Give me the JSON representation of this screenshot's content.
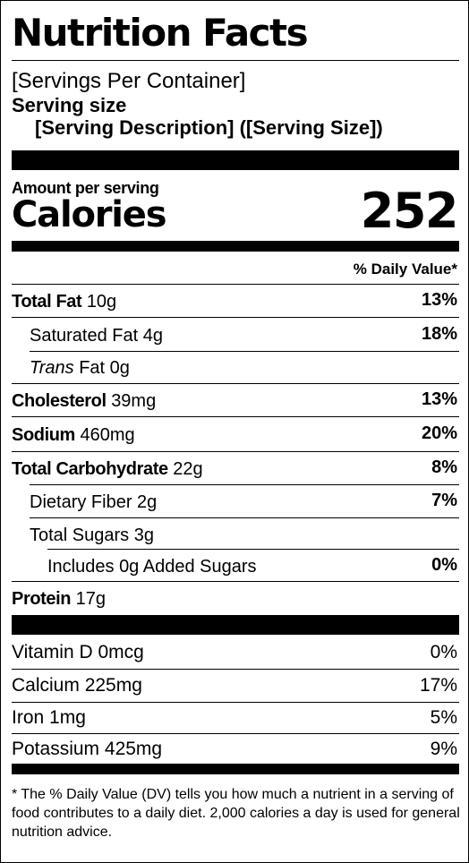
{
  "title": "Nutrition Facts",
  "servings_per_container": "[Servings Per Container]",
  "serving_size_label": "Serving size",
  "serving_description": "[Serving Description] ([Serving Size])",
  "amount_per_serving": "Amount per serving",
  "calories_label": "Calories",
  "calories_value": "252",
  "daily_value_header": "% Daily Value*",
  "nutrients": [
    {
      "name": "Total Fat",
      "amount": "10g",
      "dv": "13%"
    },
    {
      "name": "Saturated Fat",
      "amount": "4g",
      "dv": "18%"
    },
    {
      "name": "Trans",
      "name_suffix": "Fat",
      "amount": "0g",
      "dv": ""
    },
    {
      "name": "Cholesterol",
      "amount": "39mg",
      "dv": "13%"
    },
    {
      "name": "Sodium",
      "amount": "460mg",
      "dv": "20%"
    },
    {
      "name": "Total Carbohydrate",
      "amount": "22g",
      "dv": "8%"
    },
    {
      "name": "Dietary Fiber",
      "amount": "2g",
      "dv": "7%"
    },
    {
      "name": "Total Sugars",
      "amount": "3g",
      "dv": ""
    },
    {
      "prefix": "Includes",
      "amount": "0g",
      "name": "Added Sugars",
      "dv": "0%"
    },
    {
      "name": "Protein",
      "amount": "17g",
      "dv": ""
    }
  ],
  "vitamins": [
    {
      "name": "Vitamin D",
      "amount": "0mcg",
      "dv": "0%"
    },
    {
      "name": "Calcium",
      "amount": "225mg",
      "dv": "17%"
    },
    {
      "name": "Iron",
      "amount": "1mg",
      "dv": "5%"
    },
    {
      "name": "Potassium",
      "amount": "425mg",
      "dv": "9%"
    }
  ],
  "footnote": "* The % Daily Value (DV) tells you how much a nutrient in a serving of food contributes to a daily diet. 2,000 calories a day is used for general nutrition advice."
}
